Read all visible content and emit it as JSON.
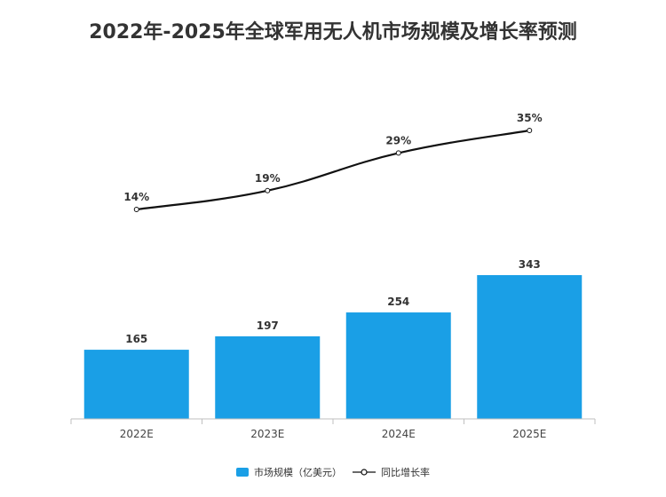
{
  "chart_data": {
    "type": "bar+line",
    "title": "2022年-2025年全球军用无人机市场规模及增长率预测",
    "categories": [
      "2022E",
      "2023E",
      "2024E",
      "2025E"
    ],
    "bar_series": {
      "name": "市场规模（亿美元）",
      "values": [
        165,
        197,
        254,
        343
      ],
      "color": "#1a9fe6"
    },
    "line_series": {
      "name": "同比增长率",
      "values": [
        14,
        19,
        29,
        35
      ],
      "labels": [
        "14%",
        "19%",
        "29%",
        "35%"
      ],
      "color": "#111111"
    },
    "legend_position": "bottom",
    "grid": false
  }
}
